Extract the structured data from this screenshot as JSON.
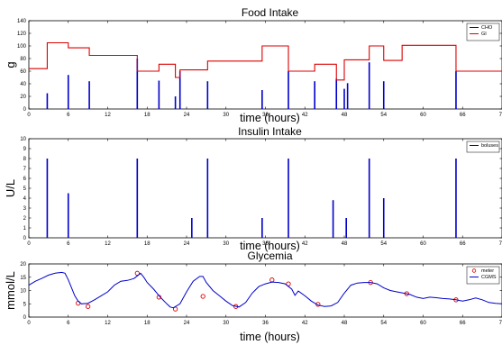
{
  "chart_data": [
    {
      "type": "line",
      "title": "Food Intake",
      "xlabel": "time (hours)",
      "ylabel": "g",
      "xlim": [
        0,
        72
      ],
      "ylim": [
        0,
        140
      ],
      "xticks": [
        "0",
        "6",
        "12",
        "18",
        "24",
        "30",
        "36",
        "42",
        "48",
        "54",
        "60",
        "66",
        "72"
      ],
      "yticks": [
        "0",
        "20",
        "40",
        "60",
        "80",
        "100",
        "120",
        "140"
      ],
      "legend": "top-right",
      "series": [
        {
          "name": "CHO",
          "kind": "impulse",
          "color": "#0000cc",
          "points": [
            [
              2.8,
              25
            ],
            [
              6.0,
              54
            ],
            [
              9.2,
              44
            ],
            [
              16.5,
              80
            ],
            [
              19.8,
              45
            ],
            [
              22.3,
              20
            ],
            [
              23.0,
              60
            ],
            [
              27.2,
              44
            ],
            [
              35.5,
              30
            ],
            [
              39.5,
              60
            ],
            [
              43.5,
              44
            ],
            [
              46.8,
              48
            ],
            [
              48.0,
              32
            ],
            [
              48.5,
              41
            ],
            [
              51.8,
              74
            ],
            [
              54.0,
              44
            ],
            [
              65.0,
              60
            ]
          ]
        },
        {
          "name": "GI",
          "kind": "step",
          "color": "#dd0000",
          "points": [
            [
              0,
              64
            ],
            [
              2.8,
              105
            ],
            [
              6.0,
              97
            ],
            [
              9.2,
              85
            ],
            [
              16.5,
              60
            ],
            [
              19.8,
              71
            ],
            [
              22.3,
              50
            ],
            [
              23.0,
              62
            ],
            [
              27.2,
              76
            ],
            [
              35.5,
              100
            ],
            [
              39.5,
              60
            ],
            [
              43.5,
              71
            ],
            [
              46.8,
              46
            ],
            [
              48.0,
              78
            ],
            [
              51.8,
              100
            ],
            [
              54.0,
              77
            ],
            [
              56.8,
              101
            ],
            [
              65.0,
              60
            ],
            [
              72,
              60
            ]
          ]
        }
      ]
    },
    {
      "type": "bar",
      "title": "Insulin Intake",
      "xlabel": "time (hours)",
      "ylabel": "U/L",
      "xlim": [
        0,
        72
      ],
      "ylim": [
        0,
        10
      ],
      "xticks": [
        "0",
        "6",
        "12",
        "18",
        "24",
        "30",
        "36",
        "42",
        "48",
        "54",
        "60",
        "66",
        "72"
      ],
      "yticks": [
        "0",
        "1",
        "2",
        "3",
        "4",
        "5",
        "6",
        "7",
        "8",
        "9",
        "10"
      ],
      "legend": "top-right",
      "series": [
        {
          "name": "boluses",
          "kind": "impulse",
          "color": "#0000cc",
          "points": [
            [
              2.8,
              8
            ],
            [
              6.0,
              4.5
            ],
            [
              16.5,
              8
            ],
            [
              24.8,
              2
            ],
            [
              27.2,
              8
            ],
            [
              35.5,
              2
            ],
            [
              39.5,
              8
            ],
            [
              46.3,
              3.8
            ],
            [
              48.3,
              2
            ],
            [
              51.8,
              8
            ],
            [
              54.0,
              4
            ],
            [
              65.0,
              8
            ]
          ]
        }
      ]
    },
    {
      "type": "line",
      "title": "Glycemia",
      "xlabel": "time (hours)",
      "ylabel": "mmol/L",
      "xlim": [
        0,
        72
      ],
      "ylim": [
        0,
        20
      ],
      "xticks": [
        "0",
        "6",
        "12",
        "18",
        "24",
        "30",
        "36",
        "42",
        "48",
        "54",
        "60",
        "66",
        "72"
      ],
      "yticks": [
        "0",
        "5",
        "10",
        "15",
        "20"
      ],
      "legend": "top-right",
      "series": [
        {
          "name": "meter",
          "kind": "markers",
          "color": "#dd0000",
          "points": [
            [
              7.5,
              5.2
            ],
            [
              9.0,
              4.0
            ],
            [
              16.5,
              16.5
            ],
            [
              19.8,
              7.5
            ],
            [
              22.3,
              3.0
            ],
            [
              26.5,
              7.8
            ],
            [
              31.5,
              4.0
            ],
            [
              37.0,
              14.0
            ],
            [
              39.5,
              12.5
            ],
            [
              44.0,
              4.8
            ],
            [
              52.0,
              13.0
            ],
            [
              57.5,
              8.8
            ],
            [
              65.0,
              6.5
            ]
          ]
        },
        {
          "name": "CGMS",
          "kind": "line",
          "color": "#0000cc",
          "points": [
            [
              0,
              12.0
            ],
            [
              1,
              13.5
            ],
            [
              2,
              14.6
            ],
            [
              3,
              15.8
            ],
            [
              4,
              16.5
            ],
            [
              5,
              16.8
            ],
            [
              5.5,
              16.5
            ],
            [
              6,
              14.0
            ],
            [
              6.5,
              11.0
            ],
            [
              7,
              8.0
            ],
            [
              7.5,
              6.0
            ],
            [
              8,
              5.0
            ],
            [
              9,
              5.2
            ],
            [
              10,
              6.5
            ],
            [
              11,
              8.0
            ],
            [
              12,
              9.5
            ],
            [
              13,
              12.0
            ],
            [
              14,
              13.5
            ],
            [
              15,
              13.8
            ],
            [
              16,
              14.5
            ],
            [
              16.5,
              15.5
            ],
            [
              17,
              16.5
            ],
            [
              17.5,
              15.0
            ],
            [
              18,
              13.0
            ],
            [
              19,
              10.5
            ],
            [
              20,
              7.5
            ],
            [
              21,
              5.0
            ],
            [
              21.5,
              3.8
            ],
            [
              22,
              3.5
            ],
            [
              23,
              5.0
            ],
            [
              24,
              9.5
            ],
            [
              25,
              13.5
            ],
            [
              26,
              15.3
            ],
            [
              26.5,
              15.3
            ],
            [
              27,
              13.0
            ],
            [
              28,
              10.0
            ],
            [
              29,
              8.0
            ],
            [
              30,
              6.0
            ],
            [
              31,
              4.3
            ],
            [
              32,
              3.8
            ],
            [
              33,
              5.5
            ],
            [
              34,
              9.0
            ],
            [
              35,
              11.5
            ],
            [
              36,
              12.5
            ],
            [
              37,
              13.2
            ],
            [
              38,
              13.0
            ],
            [
              39,
              12.5
            ],
            [
              40,
              10.5
            ],
            [
              40.5,
              8.2
            ],
            [
              41,
              9.8
            ],
            [
              42,
              8.0
            ],
            [
              43,
              6.0
            ],
            [
              44,
              4.5
            ],
            [
              45,
              4.0
            ],
            [
              46,
              4.2
            ],
            [
              47,
              5.5
            ],
            [
              48,
              9.0
            ],
            [
              49,
              12.0
            ],
            [
              50,
              12.8
            ],
            [
              51,
              13.0
            ],
            [
              52,
              13.0
            ],
            [
              53,
              12.5
            ],
            [
              54,
              11.0
            ],
            [
              55,
              10.0
            ],
            [
              56,
              9.5
            ],
            [
              57,
              9.0
            ],
            [
              58,
              8.5
            ],
            [
              59,
              7.5
            ],
            [
              60,
              7.0
            ],
            [
              61,
              7.5
            ],
            [
              62,
              7.3
            ],
            [
              63,
              7.0
            ],
            [
              64,
              6.8
            ],
            [
              65,
              6.5
            ],
            [
              66,
              6.0
            ],
            [
              67,
              6.5
            ],
            [
              68,
              7.2
            ],
            [
              69,
              6.5
            ],
            [
              70,
              5.5
            ],
            [
              71,
              5.2
            ],
            [
              72,
              5.0
            ]
          ]
        }
      ]
    }
  ]
}
